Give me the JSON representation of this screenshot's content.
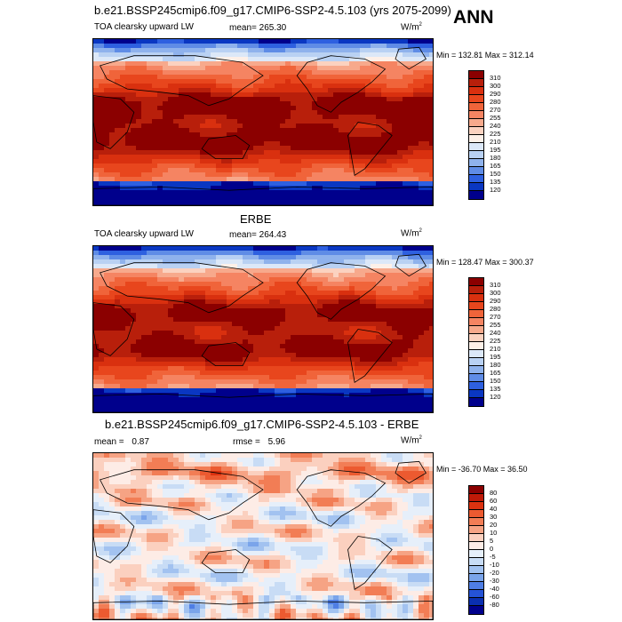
{
  "season": "ANN",
  "panels": [
    {
      "title": "b.e21.BSSP245cmip6.f09_g17.CMIP6-SSP2-4.5.103 (yrs 2075-2099)",
      "left_label": "TOA clearsky upward LW",
      "mean_label": "mean=",
      "mean_value": "265.30",
      "units": "W/m",
      "units_sup": "2",
      "minmax": "Min = 132.81 Max = 312.14",
      "colorbar_labels": [
        "310",
        "300",
        "290",
        "280",
        "270",
        "255",
        "240",
        "225",
        "210",
        "195",
        "180",
        "165",
        "150",
        "135",
        "120"
      ]
    },
    {
      "title": "ERBE",
      "left_label": "TOA clearsky upward LW",
      "mean_label": "mean=",
      "mean_value": "264.43",
      "units": "W/m",
      "units_sup": "2",
      "minmax": "Min = 128.47 Max = 300.37",
      "colorbar_labels": [
        "310",
        "300",
        "290",
        "280",
        "270",
        "255",
        "240",
        "225",
        "210",
        "195",
        "180",
        "165",
        "150",
        "135",
        "120"
      ]
    },
    {
      "title": "b.e21.BSSP245cmip6.f09_g17.CMIP6-SSP2-4.5.103 - ERBE",
      "left_label": "mean =",
      "mean_value": "0.87",
      "rmse_label": "rmse =",
      "rmse_value": "5.96",
      "units": "W/m",
      "units_sup": "2",
      "minmax": "Min = -36.70 Max = 36.50",
      "colorbar_labels": [
        "80",
        "60",
        "40",
        "30",
        "20",
        "10",
        "5",
        "0",
        "-5",
        "-10",
        "-20",
        "-30",
        "-40",
        "-60",
        "-80"
      ]
    }
  ],
  "colors": {
    "abs_scale": [
      "#8b0000",
      "#b81f0b",
      "#d9300f",
      "#e8461d",
      "#f0643a",
      "#f58462",
      "#f7a98c",
      "#fbd2c0",
      "#fdf0e8",
      "#dce8f8",
      "#b9d1f3",
      "#8fb2ec",
      "#5f8ce6",
      "#2e60e0",
      "#0a37c2",
      "#00008c"
    ],
    "diff_scale": [
      "#8b0000",
      "#bf1a08",
      "#dc3210",
      "#ec5a30",
      "#f27d55",
      "#f6a384",
      "#fbd0bf",
      "#fdece6",
      "#e6effa",
      "#c8dcf5",
      "#a2c2f0",
      "#7aa4ea",
      "#4f7ee4",
      "#2553d6",
      "#0a2fb0",
      "#00008c"
    ],
    "land_outline": "#000000"
  },
  "chart_data": [
    {
      "type": "heatmap",
      "title": "b.e21.BSSP245cmip6.f09_g17.CMIP6-SSP2-4.5.103 (yrs 2075-2099)",
      "variable": "TOA clearsky upward LW",
      "units": "W/m^2",
      "mean": 265.3,
      "min": 132.81,
      "max": 312.14,
      "contour_levels": [
        120,
        135,
        150,
        165,
        180,
        195,
        210,
        225,
        240,
        255,
        270,
        280,
        290,
        300,
        310
      ]
    },
    {
      "type": "heatmap",
      "title": "ERBE",
      "variable": "TOA clearsky upward LW",
      "units": "W/m^2",
      "mean": 264.43,
      "min": 128.47,
      "max": 300.37,
      "contour_levels": [
        120,
        135,
        150,
        165,
        180,
        195,
        210,
        225,
        240,
        255,
        270,
        280,
        290,
        300,
        310
      ]
    },
    {
      "type": "heatmap",
      "title": "b.e21.BSSP245cmip6.f09_g17.CMIP6-SSP2-4.5.103 - ERBE",
      "units": "W/m^2",
      "mean": 0.87,
      "rmse": 5.96,
      "min": -36.7,
      "max": 36.5,
      "contour_levels": [
        -80,
        -60,
        -40,
        -30,
        -20,
        -10,
        -5,
        0,
        5,
        10,
        20,
        30,
        40,
        60,
        80
      ]
    }
  ]
}
